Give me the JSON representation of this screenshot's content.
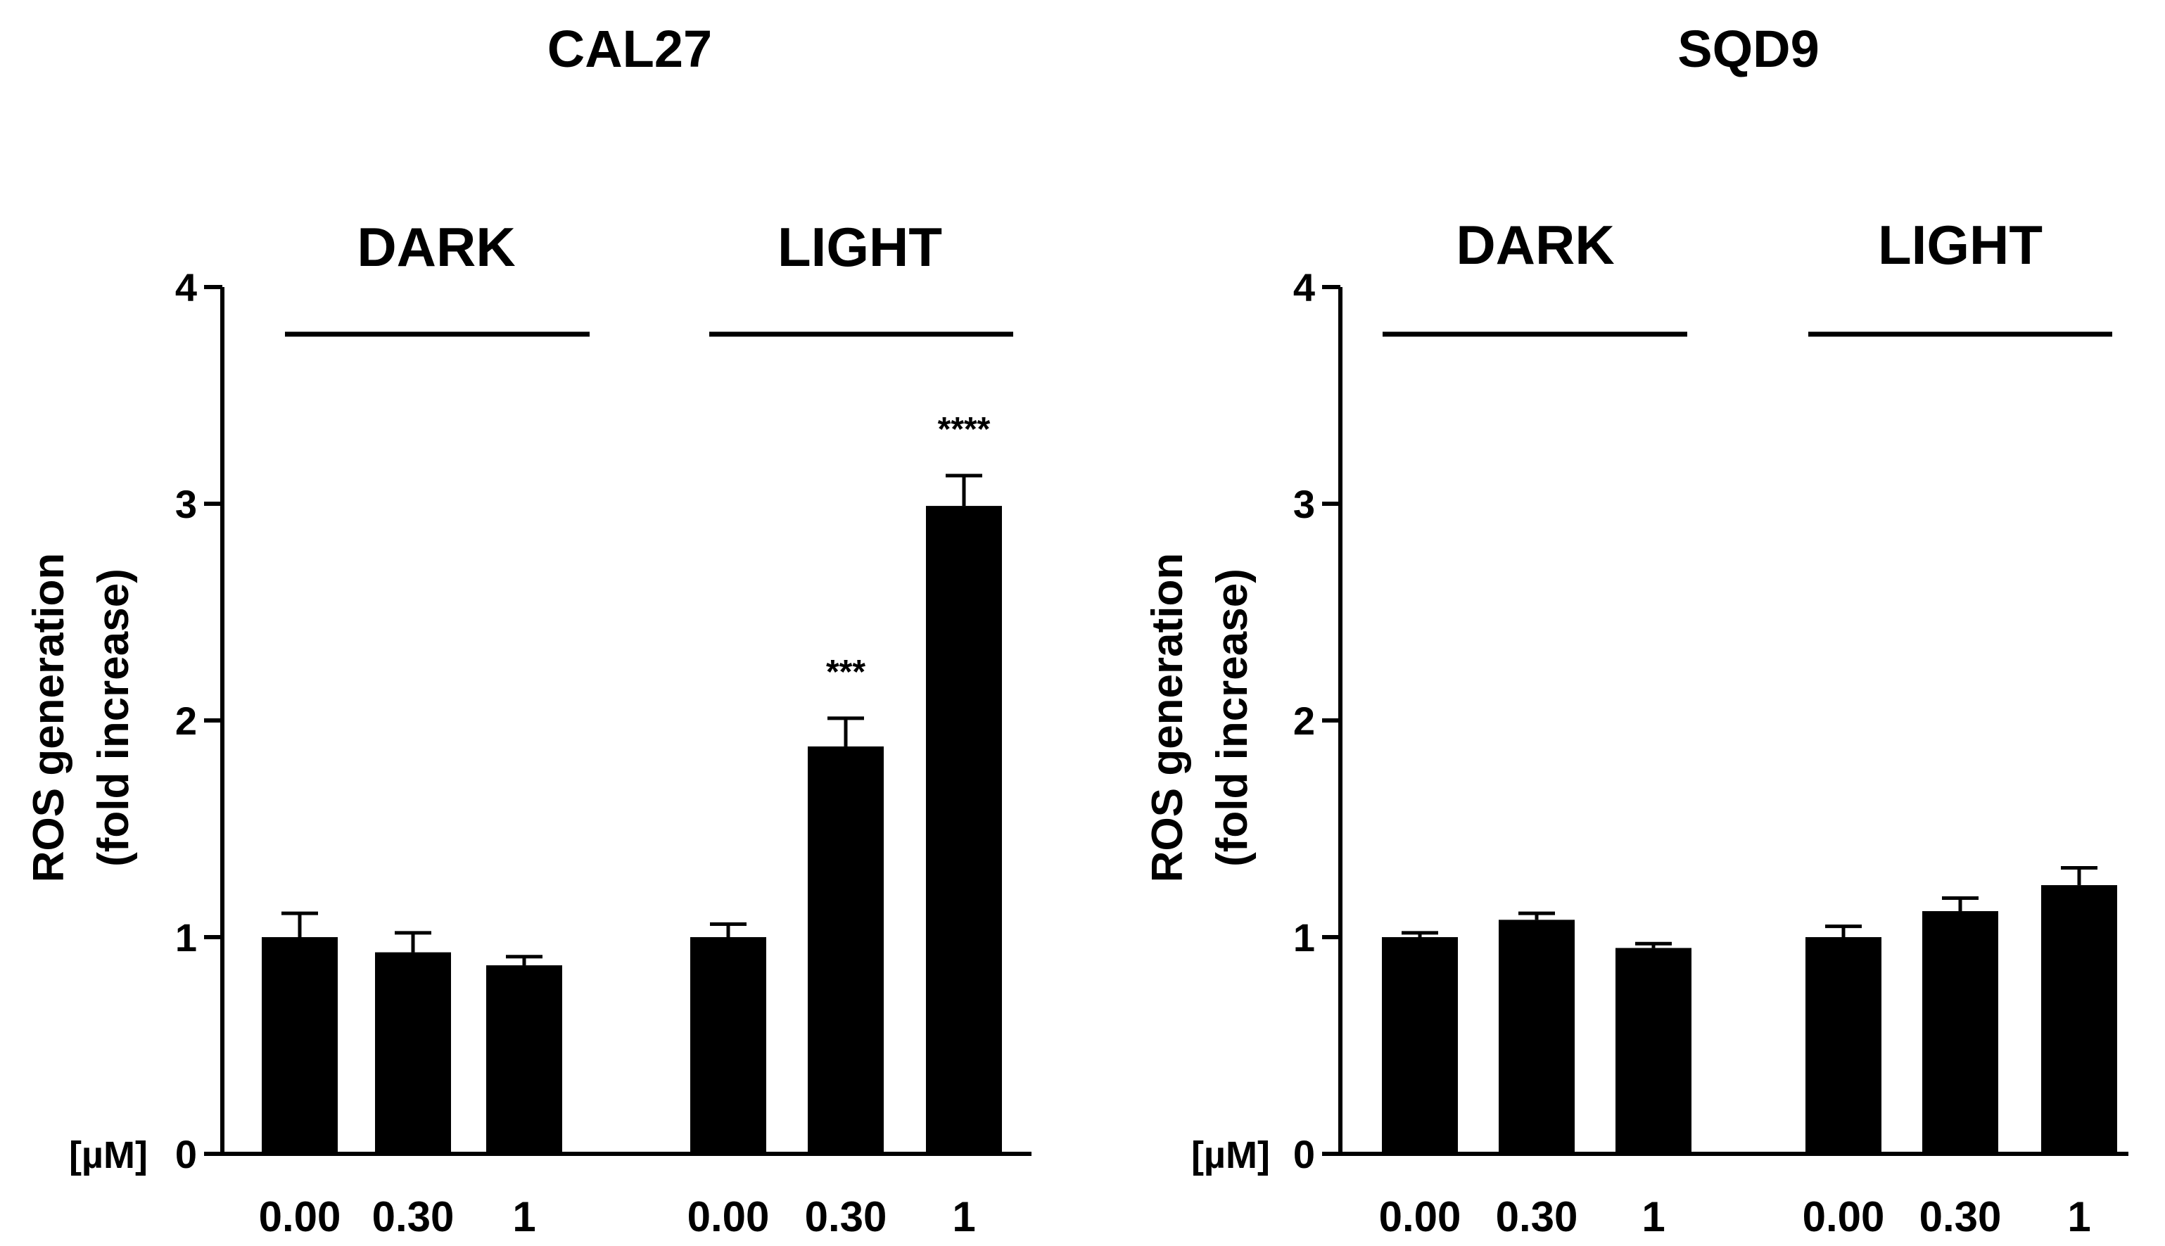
{
  "chart_data": [
    {
      "type": "bar",
      "title": "CAL27",
      "ylabel_lines": [
        "ROS generation",
        "(fold increase)"
      ],
      "xunit": "[µM]",
      "ylim": [
        0,
        4
      ],
      "yticks": [
        "0",
        "1",
        "2",
        "3",
        "4"
      ],
      "groups": [
        {
          "label": "DARK",
          "categories": [
            "0.00",
            "0.30",
            "1"
          ],
          "values": [
            1.0,
            0.93,
            0.87
          ],
          "errors": [
            0.11,
            0.09,
            0.04
          ],
          "significance": [
            "",
            "",
            ""
          ]
        },
        {
          "label": "LIGHT",
          "categories": [
            "0.00",
            "0.30",
            "1"
          ],
          "values": [
            1.0,
            1.88,
            2.99
          ],
          "errors": [
            0.06,
            0.13,
            0.14
          ],
          "significance": [
            "",
            "***",
            "****"
          ]
        }
      ]
    },
    {
      "type": "bar",
      "title": "SQD9",
      "ylabel_lines": [
        "ROS generation",
        "(fold increase)"
      ],
      "xunit": "[µM]",
      "ylim": [
        0,
        4
      ],
      "yticks": [
        "0",
        "1",
        "2",
        "3",
        "4"
      ],
      "groups": [
        {
          "label": "DARK",
          "categories": [
            "0.00",
            "0.30",
            "1"
          ],
          "values": [
            1.0,
            1.08,
            0.95
          ],
          "errors": [
            0.02,
            0.03,
            0.02
          ],
          "significance": [
            "",
            "",
            ""
          ]
        },
        {
          "label": "LIGHT",
          "categories": [
            "0.00",
            "0.30",
            "1"
          ],
          "values": [
            1.0,
            1.12,
            1.24
          ],
          "errors": [
            0.05,
            0.06,
            0.08
          ],
          "significance": [
            "",
            "",
            ""
          ]
        }
      ]
    }
  ],
  "colors": {
    "bars": "#000000",
    "axes": "#000000",
    "background": "#ffffff"
  }
}
